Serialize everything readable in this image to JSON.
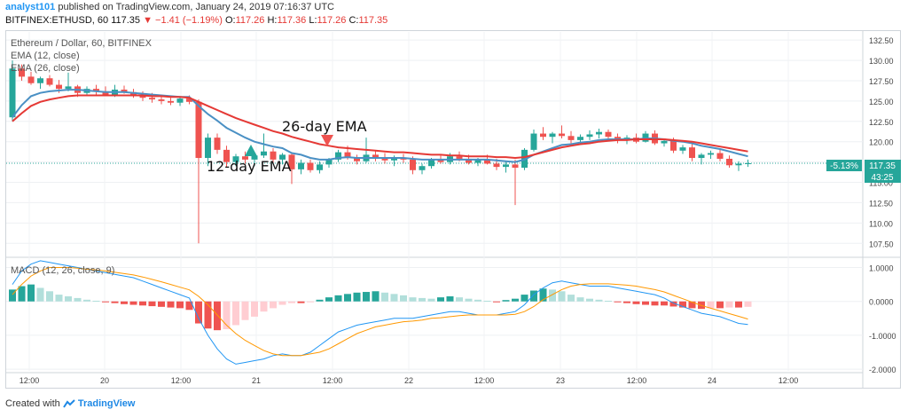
{
  "header": {
    "author": "analyst101",
    "published_text": "published on TradingView.com, January 24, 2019 07:16:37 UTC",
    "symbol": "BITFINEX:ETHUSD, 60",
    "last": "117.35",
    "change": "−1.41 (−1.19%)",
    "ohlc_o_label": "O:",
    "ohlc_o": "117.26",
    "ohlc_h_label": "H:",
    "ohlc_h": "117.36",
    "ohlc_l_label": "L:",
    "ohlc_l": "117.26",
    "ohlc_c_label": "C:",
    "ohlc_c": "117.35"
  },
  "colors": {
    "up": "#26a69a",
    "down": "#ef5350",
    "ema12": "#4a90c4",
    "ema26": "#e53935",
    "macd": "#2196f3",
    "signal": "#ff9800",
    "hist_up_strong": "#26a69a",
    "hist_up_weak": "#b2dfdb",
    "hist_down_strong": "#ef5350",
    "hist_down_weak": "#ffcdd2",
    "arrow_up": "#26a69a",
    "arrow_down": "#ef5350"
  },
  "legend": {
    "title": "Ethereum / Dollar, 60, BITFINEX",
    "ema12": "EMA (12, close)",
    "ema26": "EMA (26, close)",
    "macd": "MACD (12, 26, close, 9)"
  },
  "annotations": {
    "ema26_label": "26-day EMA",
    "ema12_label": "12-day EMA"
  },
  "price_badge": {
    "change": "-5.13%",
    "price": "117.35",
    "countdown": "43:25"
  },
  "footer": {
    "created_with": "Created with",
    "brand": "TradingView"
  },
  "chart_data": [
    {
      "type": "candlestick",
      "title": "Ethereum / Dollar, 60, BITFINEX",
      "ylim": [
        106,
        133.5
      ],
      "y_ticks": [
        "107.50",
        "110.00",
        "112.50",
        "115.00",
        "117.50",
        "120.00",
        "122.50",
        "125.00",
        "127.50",
        "130.00",
        "132.50"
      ],
      "x_ticks": [
        "12:00",
        "20",
        "12:00",
        "21",
        "12:00",
        "22",
        "12:00",
        "23",
        "12:00",
        "24",
        "12:00"
      ],
      "candles": [
        [
          123.0,
          130.0,
          122.5,
          129.0
        ],
        [
          129.0,
          129.5,
          127.5,
          128.0
        ],
        [
          128.0,
          128.6,
          127.0,
          127.2
        ],
        [
          127.2,
          128.0,
          126.5,
          127.8
        ],
        [
          127.8,
          128.2,
          126.8,
          127.0
        ],
        [
          127.0,
          127.6,
          126.0,
          126.5
        ],
        [
          126.5,
          128.5,
          126.2,
          126.8
        ],
        [
          126.8,
          127.0,
          125.5,
          126.0
        ],
        [
          126.0,
          126.8,
          125.6,
          126.5
        ],
        [
          126.5,
          127.0,
          125.8,
          126.2
        ],
        [
          126.2,
          126.8,
          125.6,
          125.8
        ],
        [
          125.8,
          127.0,
          125.5,
          126.4
        ],
        [
          126.4,
          126.9,
          125.9,
          126.1
        ],
        [
          126.1,
          126.5,
          125.4,
          125.7
        ],
        [
          125.7,
          126.2,
          125.0,
          125.4
        ],
        [
          125.4,
          126.0,
          124.8,
          125.2
        ],
        [
          125.2,
          125.8,
          124.6,
          125.0
        ],
        [
          125.0,
          125.4,
          124.5,
          124.8
        ],
        [
          124.8,
          125.6,
          124.4,
          125.3
        ],
        [
          125.3,
          125.7,
          124.6,
          124.9
        ],
        [
          124.9,
          125.2,
          107.5,
          118.0
        ],
        [
          118.0,
          121.0,
          117.0,
          120.5
        ],
        [
          120.5,
          121.0,
          118.5,
          119.0
        ],
        [
          119.0,
          119.5,
          116.8,
          117.5
        ],
        [
          117.5,
          118.5,
          117.0,
          118.2
        ],
        [
          118.2,
          118.8,
          117.3,
          117.8
        ],
        [
          117.8,
          118.5,
          117.0,
          118.3
        ],
        [
          118.3,
          121.0,
          118.0,
          118.8
        ],
        [
          118.8,
          119.2,
          117.4,
          117.8
        ],
        [
          117.8,
          118.6,
          117.2,
          118.4
        ],
        [
          118.4,
          118.7,
          114.8,
          116.6
        ],
        [
          116.6,
          117.8,
          116.0,
          117.4
        ],
        [
          117.4,
          117.8,
          116.2,
          116.5
        ],
        [
          116.5,
          117.6,
          116.1,
          117.2
        ],
        [
          117.2,
          118.0,
          116.8,
          117.8
        ],
        [
          117.8,
          119.0,
          117.5,
          118.7
        ],
        [
          118.7,
          119.5,
          117.8,
          118.0
        ],
        [
          118.0,
          118.4,
          117.2,
          117.6
        ],
        [
          117.6,
          120.5,
          117.4,
          118.4
        ],
        [
          118.4,
          118.9,
          117.6,
          118.1
        ],
        [
          118.1,
          118.6,
          117.3,
          117.7
        ],
        [
          117.7,
          118.3,
          117.0,
          118.0
        ],
        [
          118.0,
          118.5,
          117.4,
          117.8
        ],
        [
          117.8,
          118.2,
          116.0,
          116.5
        ],
        [
          116.5,
          117.3,
          116.0,
          117.0
        ],
        [
          117.0,
          118.0,
          116.7,
          117.8
        ],
        [
          117.8,
          118.3,
          117.3,
          117.5
        ],
        [
          117.5,
          118.6,
          117.2,
          118.2
        ],
        [
          118.2,
          118.8,
          117.6,
          117.9
        ],
        [
          117.9,
          118.4,
          117.2,
          117.4
        ],
        [
          117.4,
          118.0,
          117.0,
          117.8
        ],
        [
          117.8,
          118.4,
          117.2,
          117.3
        ],
        [
          117.3,
          117.9,
          116.5,
          116.9
        ],
        [
          116.9,
          117.6,
          116.2,
          117.2
        ],
        [
          117.2,
          117.8,
          112.2,
          116.8
        ],
        [
          116.8,
          119.2,
          116.5,
          119.0
        ],
        [
          119.0,
          121.5,
          118.8,
          121.0
        ],
        [
          121.0,
          121.8,
          120.2,
          120.6
        ],
        [
          120.6,
          121.2,
          119.8,
          121.0
        ],
        [
          121.0,
          122.0,
          120.4,
          120.7
        ],
        [
          120.7,
          121.3,
          119.5,
          120.2
        ],
        [
          120.2,
          120.9,
          119.6,
          120.6
        ],
        [
          120.6,
          121.4,
          120.2,
          120.9
        ],
        [
          120.9,
          121.6,
          120.4,
          121.2
        ],
        [
          121.2,
          121.5,
          120.3,
          120.6
        ],
        [
          120.6,
          121.0,
          119.8,
          120.2
        ],
        [
          120.2,
          120.8,
          119.7,
          120.5
        ],
        [
          120.5,
          121.0,
          119.8,
          120.0
        ],
        [
          120.0,
          121.3,
          119.9,
          121.0
        ],
        [
          121.0,
          121.4,
          119.6,
          119.8
        ],
        [
          119.8,
          120.4,
          119.4,
          120.1
        ],
        [
          120.1,
          120.5,
          118.6,
          118.9
        ],
        [
          118.9,
          119.6,
          118.5,
          119.3
        ],
        [
          119.3,
          119.8,
          117.6,
          118.0
        ],
        [
          118.0,
          118.6,
          117.2,
          118.4
        ],
        [
          118.4,
          118.9,
          117.9,
          118.6
        ],
        [
          118.6,
          119.0,
          117.6,
          117.9
        ],
        [
          117.9,
          118.3,
          116.8,
          117.1
        ],
        [
          117.1,
          117.6,
          116.4,
          117.3
        ],
        [
          117.3,
          117.8,
          116.9,
          117.35
        ]
      ],
      "series": [
        {
          "name": "EMA (12, close)",
          "values": [
            123.0,
            124.5,
            125.6,
            126.0,
            126.2,
            126.3,
            126.4,
            126.4,
            126.3,
            126.2,
            126.1,
            126.1,
            126.1,
            126.0,
            125.9,
            125.8,
            125.7,
            125.6,
            125.5,
            125.5,
            124.4,
            123.4,
            122.6,
            121.7,
            121.1,
            120.5,
            120.0,
            119.7,
            119.4,
            119.2,
            118.6,
            118.4,
            118.0,
            117.8,
            117.8,
            118.0,
            118.1,
            118.0,
            118.0,
            118.0,
            118.0,
            118.0,
            118.0,
            117.9,
            117.8,
            117.8,
            117.8,
            117.8,
            117.8,
            117.8,
            117.8,
            117.8,
            117.7,
            117.6,
            117.5,
            117.8,
            118.4,
            118.8,
            119.2,
            119.6,
            119.7,
            119.9,
            120.0,
            120.2,
            120.3,
            120.3,
            120.3,
            120.3,
            120.4,
            120.4,
            120.3,
            120.1,
            120.0,
            119.8,
            119.5,
            119.3,
            119.1,
            118.8,
            118.5,
            118.2
          ]
        },
        {
          "name": "EMA (26, close)",
          "values": [
            122.5,
            123.5,
            124.4,
            124.9,
            125.2,
            125.4,
            125.6,
            125.7,
            125.7,
            125.7,
            125.7,
            125.7,
            125.7,
            125.7,
            125.7,
            125.6,
            125.6,
            125.5,
            125.5,
            125.4,
            124.9,
            124.4,
            123.9,
            123.4,
            122.9,
            122.5,
            122.1,
            121.7,
            121.3,
            121.0,
            120.6,
            120.3,
            120.0,
            119.7,
            119.5,
            119.3,
            119.2,
            119.1,
            119.0,
            118.9,
            118.8,
            118.7,
            118.7,
            118.6,
            118.5,
            118.4,
            118.4,
            118.3,
            118.3,
            118.2,
            118.2,
            118.2,
            118.1,
            118.1,
            118.0,
            118.1,
            118.4,
            118.7,
            119.0,
            119.3,
            119.5,
            119.7,
            119.8,
            120.0,
            120.1,
            120.2,
            120.2,
            120.3,
            120.3,
            120.3,
            120.3,
            120.2,
            120.1,
            120.0,
            119.8,
            119.6,
            119.4,
            119.2,
            119.0,
            118.8
          ]
        }
      ]
    },
    {
      "type": "line",
      "title": "MACD (12, 26, close, 9)",
      "ylim": [
        -2.05,
        1.25
      ],
      "y_ticks": [
        "1.0000",
        "0.0000",
        "-1.0000",
        "-2.0000"
      ],
      "series": [
        {
          "name": "MACD",
          "values": [
            0.5,
            0.9,
            1.1,
            1.2,
            1.15,
            1.1,
            1.05,
            1.0,
            0.95,
            0.9,
            0.85,
            0.8,
            0.75,
            0.7,
            0.6,
            0.5,
            0.4,
            0.3,
            0.2,
            0.1,
            -0.5,
            -1.0,
            -1.4,
            -1.7,
            -1.85,
            -1.8,
            -1.75,
            -1.7,
            -1.6,
            -1.55,
            -1.6,
            -1.6,
            -1.5,
            -1.3,
            -1.1,
            -0.9,
            -0.8,
            -0.7,
            -0.65,
            -0.6,
            -0.55,
            -0.5,
            -0.5,
            -0.5,
            -0.45,
            -0.4,
            -0.35,
            -0.3,
            -0.3,
            -0.35,
            -0.4,
            -0.4,
            -0.4,
            -0.35,
            -0.3,
            -0.1,
            0.2,
            0.4,
            0.55,
            0.6,
            0.55,
            0.5,
            0.45,
            0.45,
            0.45,
            0.4,
            0.35,
            0.3,
            0.25,
            0.2,
            0.1,
            -0.05,
            -0.15,
            -0.25,
            -0.35,
            -0.4,
            -0.45,
            -0.55,
            -0.65,
            -0.68
          ]
        },
        {
          "name": "Signal",
          "values": [
            0.2,
            0.5,
            0.75,
            0.9,
            1.0,
            1.0,
            1.0,
            0.98,
            0.95,
            0.93,
            0.9,
            0.86,
            0.82,
            0.78,
            0.72,
            0.65,
            0.58,
            0.5,
            0.42,
            0.34,
            0.15,
            -0.1,
            -0.4,
            -0.7,
            -0.95,
            -1.15,
            -1.3,
            -1.45,
            -1.55,
            -1.6,
            -1.6,
            -1.6,
            -1.55,
            -1.5,
            -1.4,
            -1.25,
            -1.1,
            -0.95,
            -0.85,
            -0.75,
            -0.7,
            -0.65,
            -0.6,
            -0.58,
            -0.55,
            -0.5,
            -0.48,
            -0.45,
            -0.42,
            -0.4,
            -0.4,
            -0.4,
            -0.4,
            -0.4,
            -0.38,
            -0.3,
            -0.15,
            0.05,
            0.2,
            0.35,
            0.45,
            0.5,
            0.52,
            0.52,
            0.52,
            0.5,
            0.48,
            0.45,
            0.4,
            0.35,
            0.28,
            0.18,
            0.08,
            -0.02,
            -0.12,
            -0.2,
            -0.28,
            -0.36,
            -0.44,
            -0.52
          ]
        }
      ],
      "histogram": [
        0.35,
        0.45,
        0.5,
        0.4,
        0.3,
        0.2,
        0.15,
        0.1,
        0.05,
        0.02,
        -0.02,
        -0.05,
        -0.08,
        -0.1,
        -0.12,
        -0.14,
        -0.16,
        -0.18,
        -0.2,
        -0.25,
        -0.65,
        -0.8,
        -0.85,
        -0.82,
        -0.7,
        -0.55,
        -0.45,
        -0.3,
        -0.2,
        -0.1,
        -0.05,
        -0.05,
        -0.02,
        0.05,
        0.12,
        0.18,
        0.22,
        0.26,
        0.28,
        0.3,
        0.26,
        0.22,
        0.18,
        0.12,
        0.1,
        0.08,
        0.12,
        0.15,
        0.12,
        0.08,
        0.05,
        0.02,
        -0.02,
        0.04,
        0.08,
        0.2,
        0.32,
        0.38,
        0.35,
        0.3,
        0.2,
        0.12,
        0.08,
        0.05,
        0.02,
        -0.02,
        -0.05,
        -0.08,
        -0.1,
        -0.12,
        -0.12,
        -0.15,
        -0.18,
        -0.2,
        -0.22,
        -0.2,
        -0.2,
        -0.18,
        -0.18,
        -0.16
      ]
    }
  ]
}
